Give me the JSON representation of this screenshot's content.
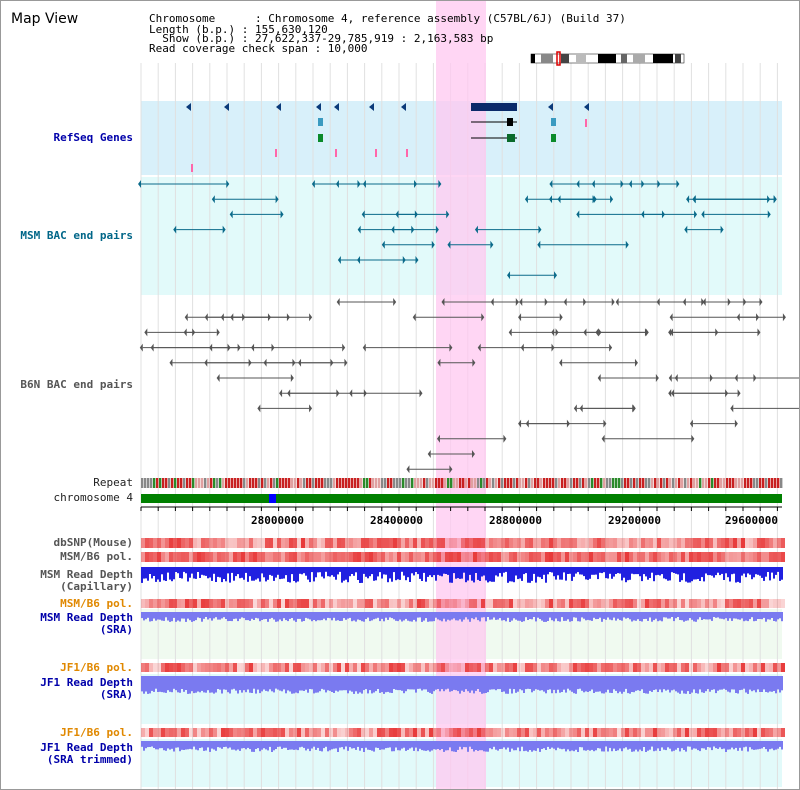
{
  "view": {
    "title": "Map View",
    "info_lines": [
      "Chromosome      : Chromosome 4, reference assembly (C57BL/6J) (Build 37)",
      "Length (b.p.) : 155,630,120",
      "  Show (b.p.) : 27,622,337-29,785,919 : 2,163,583 bp",
      "Read coverage check span : 10,000"
    ]
  },
  "tracks": {
    "refseq": "RefSeq Genes",
    "msm_bac": "MSM BAC end pairs",
    "b6n_bac": "B6N BAC end pairs",
    "repeat": "Repeat",
    "chromosome": "chromosome 4",
    "dbsnp": "dbSNP(Mouse)",
    "msm_b6_pol_1": "MSM/B6 pol.",
    "msm_read_depth_cap": [
      "MSM Read Depth",
      "(Capillary)"
    ],
    "msm_b6_pol_2": "MSM/B6 pol.",
    "msm_read_depth_sra": [
      "MSM Read Depth",
      "(SRA)"
    ],
    "jf1_b6_pol_1": "JF1/B6 pol.",
    "jf1_read_depth_sra": [
      "JF1 Read Depth",
      "(SRA)"
    ],
    "jf1_b6_pol_2": "JF1/B6 pol.",
    "jf1_read_depth_trim": [
      "JF1 Read Depth",
      "(SRA trimmed)"
    ]
  },
  "axis": {
    "ticks": [
      "28000000",
      "28400000",
      "28800000",
      "29200000",
      "29600000"
    ]
  },
  "colors": {
    "highlight": "#ffc8f0",
    "refseq_bg": "#d8f0fa",
    "msm_bac_bg": "#e2fafa",
    "chromosome": "#008000",
    "snp_red": "#e83a3a",
    "depth_blue": "#2020e0",
    "depth_violet": "#7a7af0"
  }
}
